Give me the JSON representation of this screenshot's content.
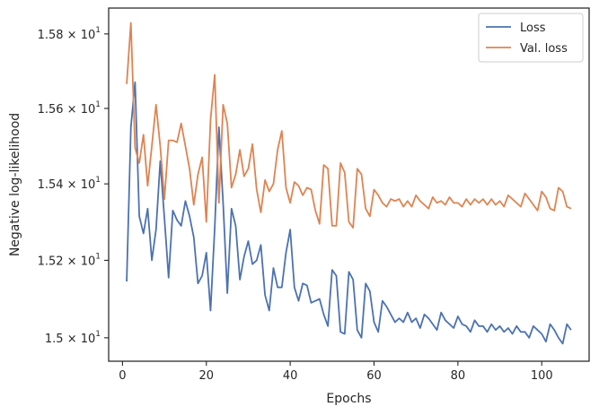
{
  "chart_data": {
    "type": "line",
    "title": "",
    "xlabel": "Epochs",
    "ylabel": "Negative log-likelihood",
    "xlim": [
      -3.3,
      111.3
    ],
    "ylim": [
      14.94,
      15.87
    ],
    "yscale": "log",
    "grid": false,
    "legend_position": "top-right",
    "x_ticks": [
      {
        "value": 0,
        "label": "0"
      },
      {
        "value": 20,
        "label": "20"
      },
      {
        "value": 40,
        "label": "40"
      },
      {
        "value": 60,
        "label": "60"
      },
      {
        "value": 80,
        "label": "80"
      },
      {
        "value": 100,
        "label": "100"
      }
    ],
    "y_ticks": [
      {
        "value": 15.0,
        "mantissa": "1.5",
        "exponent": "1"
      },
      {
        "value": 15.2,
        "mantissa": "1.52",
        "exponent": "1"
      },
      {
        "value": 15.4,
        "mantissa": "1.54",
        "exponent": "1"
      },
      {
        "value": 15.6,
        "mantissa": "1.56",
        "exponent": "1"
      },
      {
        "value": 15.8,
        "mantissa": "1.58",
        "exponent": "1"
      }
    ],
    "x": [
      1,
      2,
      3,
      4,
      5,
      6,
      7,
      8,
      9,
      10,
      11,
      12,
      13,
      14,
      15,
      16,
      17,
      18,
      19,
      20,
      21,
      22,
      23,
      24,
      25,
      26,
      27,
      28,
      29,
      30,
      31,
      32,
      33,
      34,
      35,
      36,
      37,
      38,
      39,
      40,
      41,
      42,
      43,
      44,
      45,
      46,
      47,
      48,
      49,
      50,
      51,
      52,
      53,
      54,
      55,
      56,
      57,
      58,
      59,
      60,
      61,
      62,
      63,
      64,
      65,
      66,
      67,
      68,
      69,
      70,
      71,
      72,
      73,
      74,
      75,
      76,
      77,
      78,
      79,
      80,
      81,
      82,
      83,
      84,
      85,
      86,
      87,
      88,
      89,
      90,
      91,
      92,
      93,
      94,
      95,
      96,
      97,
      98,
      99,
      100,
      101,
      102,
      103,
      104,
      105,
      106,
      107
    ],
    "series": [
      {
        "name": "Loss",
        "color": "#4c72b0",
        "values": [
          15.145,
          15.55,
          15.67,
          15.315,
          15.27,
          15.335,
          15.2,
          15.28,
          15.46,
          15.31,
          15.155,
          15.33,
          15.305,
          15.29,
          15.355,
          15.315,
          15.26,
          15.14,
          15.16,
          15.22,
          15.07,
          15.285,
          15.55,
          15.35,
          15.115,
          15.335,
          15.29,
          15.15,
          15.21,
          15.25,
          15.19,
          15.2,
          15.24,
          15.11,
          15.07,
          15.18,
          15.13,
          15.13,
          15.22,
          15.28,
          15.13,
          15.095,
          15.14,
          15.135,
          15.09,
          15.095,
          15.1,
          15.06,
          15.03,
          15.175,
          15.16,
          15.015,
          15.01,
          15.17,
          15.15,
          15.02,
          15.0,
          15.14,
          15.12,
          15.04,
          15.015,
          15.095,
          15.08,
          15.06,
          15.04,
          15.05,
          15.04,
          15.065,
          15.04,
          15.05,
          15.025,
          15.06,
          15.05,
          15.035,
          15.02,
          15.065,
          15.045,
          15.035,
          15.025,
          15.055,
          15.035,
          15.03,
          15.015,
          15.045,
          15.03,
          15.03,
          15.015,
          15.035,
          15.02,
          15.03,
          15.015,
          15.025,
          15.01,
          15.03,
          15.015,
          15.015,
          15.0,
          15.03,
          15.02,
          15.01,
          14.99,
          15.035,
          15.02,
          15.0,
          14.985,
          15.035,
          15.02
        ]
      },
      {
        "name": "Val. loss",
        "color": "#dd8452",
        "values": [
          15.665,
          15.83,
          15.495,
          15.455,
          15.53,
          15.395,
          15.5,
          15.61,
          15.5,
          15.36,
          15.515,
          15.515,
          15.51,
          15.56,
          15.5,
          15.44,
          15.345,
          15.425,
          15.47,
          15.3,
          15.57,
          15.69,
          15.35,
          15.61,
          15.56,
          15.39,
          15.425,
          15.49,
          15.42,
          15.44,
          15.505,
          15.385,
          15.325,
          15.41,
          15.38,
          15.4,
          15.49,
          15.54,
          15.39,
          15.35,
          15.405,
          15.395,
          15.37,
          15.39,
          15.385,
          15.33,
          15.295,
          15.45,
          15.44,
          15.29,
          15.29,
          15.455,
          15.43,
          15.3,
          15.285,
          15.44,
          15.425,
          15.335,
          15.315,
          15.385,
          15.37,
          15.35,
          15.34,
          15.36,
          15.355,
          15.36,
          15.34,
          15.355,
          15.34,
          15.37,
          15.355,
          15.345,
          15.335,
          15.365,
          15.35,
          15.355,
          15.345,
          15.365,
          15.35,
          15.35,
          15.34,
          15.36,
          15.345,
          15.36,
          15.35,
          15.36,
          15.345,
          15.36,
          15.345,
          15.355,
          15.34,
          15.37,
          15.36,
          15.35,
          15.34,
          15.375,
          15.36,
          15.345,
          15.33,
          15.38,
          15.365,
          15.335,
          15.33,
          15.39,
          15.38,
          15.34,
          15.335
        ]
      }
    ]
  }
}
